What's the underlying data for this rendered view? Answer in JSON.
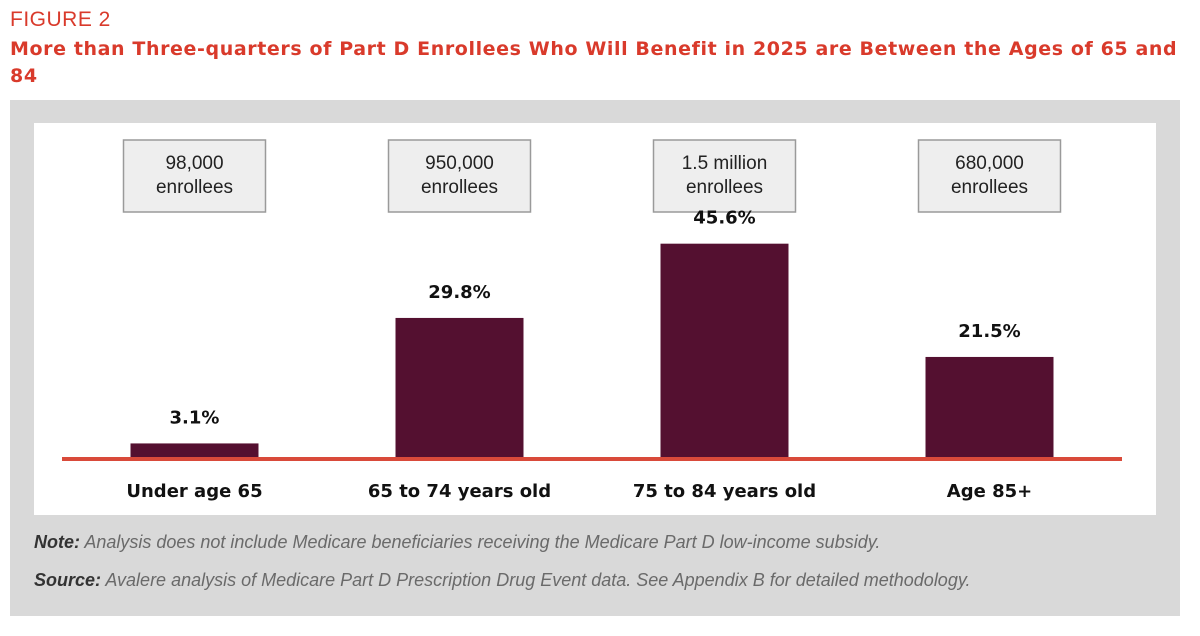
{
  "figure_label": "FIGURE 2",
  "title": "More than Three-quarters of Part D Enrollees Who Will Benefit in 2025 are Between the Ages of 65 and 84",
  "colors": {
    "accent": "#d93a2b",
    "bar": "#541030",
    "baseline": "#d94a3a",
    "panel": "#d9d9d9",
    "box_fill": "#eeeeee"
  },
  "chart_data": {
    "type": "bar",
    "categories": [
      "Under age 65",
      "65 to 74 years old",
      "75 to 84 years old",
      "Age 85+"
    ],
    "values": [
      3.1,
      29.8,
      45.6,
      21.5
    ],
    "value_labels": [
      "3.1%",
      "29.8%",
      "45.6%",
      "21.5%"
    ],
    "enrollee_boxes": [
      [
        "98,000",
        "enrollees"
      ],
      [
        "950,000",
        "enrollees"
      ],
      [
        "1.5 million",
        "enrollees"
      ],
      [
        "680,000",
        "enrollees"
      ]
    ],
    "ylim": [
      0,
      50
    ],
    "grid": false,
    "legend": "none"
  },
  "note": {
    "label": "Note:",
    "text": " Analysis does not include Medicare beneficiaries receiving the Medicare Part D low-income subsidy."
  },
  "source": {
    "label": "Source:",
    "text": " Avalere analysis of Medicare Part D Prescription Drug Event data. See Appendix B for detailed methodology."
  }
}
